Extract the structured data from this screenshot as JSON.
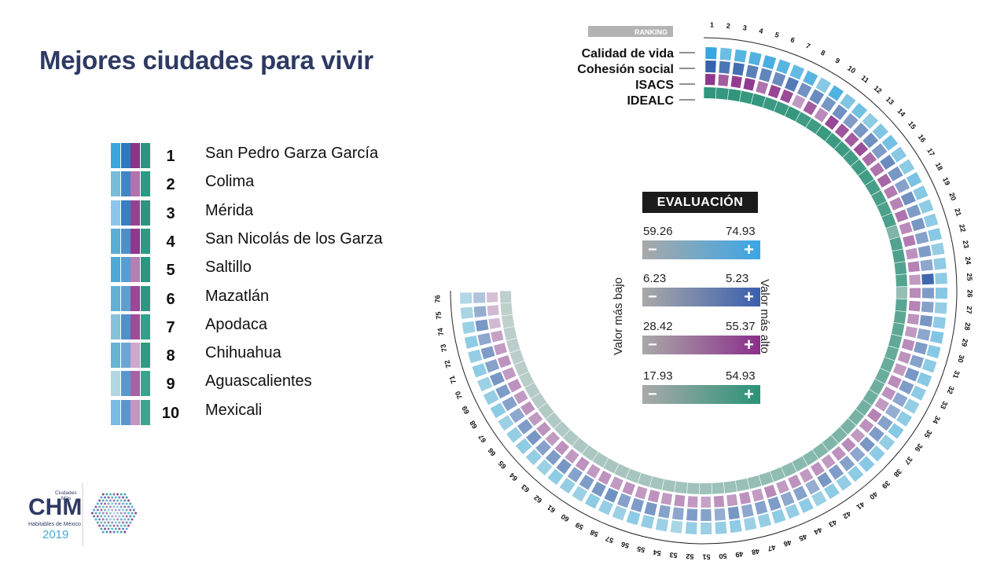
{
  "title": "Mejores ciudades para vivir",
  "colors": {
    "calidad": [
      "#b7dbe6",
      "#2fa4df"
    ],
    "cohesion": [
      "#c0cfe2",
      "#2f5ea8"
    ],
    "isacs": [
      "#d9c8db",
      "#8a2f88"
    ],
    "idealc": [
      "#c4d1cf",
      "#2a9378"
    ]
  },
  "top10": [
    {
      "rank": "1",
      "name": "San Pedro Garza García",
      "colors": [
        "#3aa6dc",
        "#2e78bf",
        "#8a3587",
        "#2a9580"
      ]
    },
    {
      "rank": "2",
      "name": "Colima",
      "colors": [
        "#77bcd8",
        "#3f86c5",
        "#b172ae",
        "#2d9a85"
      ]
    },
    {
      "rank": "3",
      "name": "Mérida",
      "colors": [
        "#8cc6ea",
        "#3a7fc1",
        "#944392",
        "#2b957f"
      ]
    },
    {
      "rank": "4",
      "name": "San Nicolás de los Garza",
      "colors": [
        "#5aaed5",
        "#4d8fc9",
        "#8e3a8c",
        "#2e9a84"
      ]
    },
    {
      "rank": "5",
      "name": "Saltillo",
      "colors": [
        "#4fa9d6",
        "#569dd3",
        "#b67fb3",
        "#2b977f"
      ]
    },
    {
      "rank": "6",
      "name": "Mazatlán",
      "colors": [
        "#62b1d3",
        "#5f9fce",
        "#9a4797",
        "#2c9883"
      ]
    },
    {
      "rank": "7",
      "name": "Apodaca",
      "colors": [
        "#86c1da",
        "#5090c8",
        "#9b4d98",
        "#32a08a"
      ]
    },
    {
      "rank": "8",
      "name": "Chihuahua",
      "colors": [
        "#67b4d5",
        "#6ca6d3",
        "#cfa7cc",
        "#2e9c85"
      ]
    },
    {
      "rank": "9",
      "name": "Aguascalientes",
      "colors": [
        "#b1d8e2",
        "#5997cd",
        "#a663a4",
        "#3aa48f"
      ]
    },
    {
      "rank": "10",
      "name": "Mexicali",
      "colors": [
        "#78bbe3",
        "#5b95cd",
        "#c595c3",
        "#3da48f"
      ]
    }
  ],
  "radial": {
    "ranking_label": "RANKING",
    "ring_labels": [
      "Calidad de vida",
      "Cohesión social",
      "ISACS",
      "IDEALC"
    ],
    "ranks": [
      "1",
      "2",
      "3",
      "4",
      "5",
      "6",
      "7",
      "8",
      "9",
      "10",
      "11",
      "12",
      "13",
      "14",
      "15",
      "16",
      "17",
      "18",
      "19",
      "20",
      "21",
      "22",
      "23",
      "24",
      "25",
      "26",
      "27",
      "28",
      "29",
      "30",
      "31",
      "32",
      "33",
      "34",
      "35",
      "36",
      "37",
      "38",
      "39",
      "40",
      "41",
      "42",
      "43",
      "44",
      "45",
      "46",
      "47",
      "48",
      "49",
      "50",
      "51",
      "52",
      "53",
      "54",
      "55",
      "56",
      "57",
      "58",
      "59",
      "60",
      "61",
      "62",
      "63",
      "64",
      "65",
      "66",
      "67",
      "68",
      "69",
      "70",
      "71",
      "72",
      "73",
      "74",
      "75",
      "76"
    ],
    "values": {
      "calidad": [
        0.95,
        0.55,
        0.7,
        0.75,
        0.8,
        0.7,
        0.6,
        0.7,
        0.35,
        0.75,
        0.4,
        0.5,
        0.3,
        0.4,
        0.5,
        0.35,
        0.3,
        0.45,
        0.35,
        0.3,
        0.3,
        0.35,
        0.25,
        0.3,
        0.3,
        0.35,
        0.25,
        0.3,
        0.4,
        0.35,
        0.3,
        0.35,
        0.3,
        0.25,
        0.3,
        0.35,
        0.25,
        0.3,
        0.35,
        0.3,
        0.25,
        0.3,
        0.2,
        0.3,
        0.25,
        0.3,
        0.25,
        0.2,
        0.3,
        0.25,
        0.2,
        0.25,
        0.1,
        0.2,
        0.25,
        0.3,
        0.2,
        0.25,
        0.3,
        0.2,
        0.25,
        0.3,
        0.2,
        0.25,
        0.3,
        0.25,
        0.2,
        0.3,
        0.25,
        0.2,
        0.3,
        0.25,
        0.3,
        0.2,
        0.1,
        0.05
      ],
      "cohesion": [
        0.95,
        0.8,
        0.85,
        0.7,
        0.65,
        0.6,
        0.75,
        0.55,
        0.6,
        0.5,
        0.55,
        0.45,
        0.5,
        0.55,
        0.45,
        0.6,
        0.5,
        0.4,
        0.55,
        0.45,
        0.5,
        0.4,
        0.45,
        0.35,
        0.9,
        0.45,
        0.4,
        0.5,
        0.35,
        0.45,
        0.4,
        0.5,
        0.45,
        0.35,
        0.3,
        0.4,
        0.45,
        0.5,
        0.35,
        0.4,
        0.45,
        0.5,
        0.3,
        0.4,
        0.35,
        0.45,
        0.4,
        0.35,
        0.5,
        0.3,
        0.4,
        0.45,
        0.35,
        0.4,
        0.5,
        0.45,
        0.4,
        0.55,
        0.5,
        0.45,
        0.4,
        0.5,
        0.45,
        0.4,
        0.5,
        0.45,
        0.35,
        0.4,
        0.45,
        0.5,
        0.4,
        0.45,
        0.35,
        0.5,
        0.3,
        0.1
      ],
      "isacs": [
        0.95,
        0.7,
        0.9,
        0.92,
        0.55,
        0.85,
        0.82,
        0.3,
        0.7,
        0.4,
        0.85,
        0.75,
        0.7,
        0.8,
        0.6,
        0.55,
        0.65,
        0.5,
        0.45,
        0.55,
        0.4,
        0.5,
        0.35,
        0.45,
        0.3,
        0.4,
        0.45,
        0.35,
        0.3,
        0.4,
        0.35,
        0.3,
        0.4,
        0.35,
        0.3,
        0.45,
        0.35,
        0.3,
        0.4,
        0.35,
        0.3,
        0.35,
        0.3,
        0.35,
        0.3,
        0.4,
        0.3,
        0.35,
        0.3,
        0.35,
        0.25,
        0.3,
        0.35,
        0.3,
        0.35,
        0.3,
        0.35,
        0.3,
        0.35,
        0.3,
        0.35,
        0.3,
        0.35,
        0.3,
        0.35,
        0.3,
        0.35,
        0.3,
        0.35,
        0.3,
        0.35,
        0.3,
        0.25,
        0.1,
        0.1,
        0.05
      ],
      "idealc": [
        0.95,
        0.93,
        0.96,
        0.92,
        0.94,
        0.9,
        0.88,
        0.93,
        0.86,
        0.85,
        0.9,
        0.88,
        0.87,
        0.85,
        0.86,
        0.84,
        0.82,
        0.8,
        0.78,
        0.8,
        0.45,
        0.75,
        0.78,
        0.74,
        0.72,
        0.3,
        0.7,
        0.68,
        0.66,
        0.64,
        0.62,
        0.6,
        0.58,
        0.56,
        0.55,
        0.53,
        0.5,
        0.48,
        0.46,
        0.44,
        0.42,
        0.4,
        0.38,
        0.36,
        0.34,
        0.32,
        0.3,
        0.28,
        0.27,
        0.26,
        0.25,
        0.24,
        0.23,
        0.22,
        0.21,
        0.2,
        0.2,
        0.19,
        0.18,
        0.17,
        0.16,
        0.15,
        0.14,
        0.13,
        0.12,
        0.11,
        0.1,
        0.09,
        0.08,
        0.07,
        0.06,
        0.05,
        0.05,
        0.04,
        0.04,
        0.03
      ]
    }
  },
  "legend": {
    "title": "EVALUACIÓN",
    "low_label": "Valor más bajo",
    "high_label": "Valor más alto",
    "minus": "−",
    "plus": "+",
    "scales": [
      {
        "min": "59.26",
        "max": "74.93",
        "from": "#a9a9a9",
        "to": "#3aa6e6"
      },
      {
        "min": "6.23",
        "max": "5.23",
        "from": "#a9a9a9",
        "to": "#3a5fae"
      },
      {
        "min": "28.42",
        "max": "55.37",
        "from": "#a9a9a9",
        "to": "#8b2f8a"
      },
      {
        "min": "17.93",
        "max": "54.93",
        "from": "#a9a9a9",
        "to": "#2a9378"
      }
    ]
  },
  "logo": {
    "brand": "CHM",
    "line1": "Ciudades",
    "line2": "Más",
    "line3": "Habitables de México",
    "year": "2019"
  }
}
